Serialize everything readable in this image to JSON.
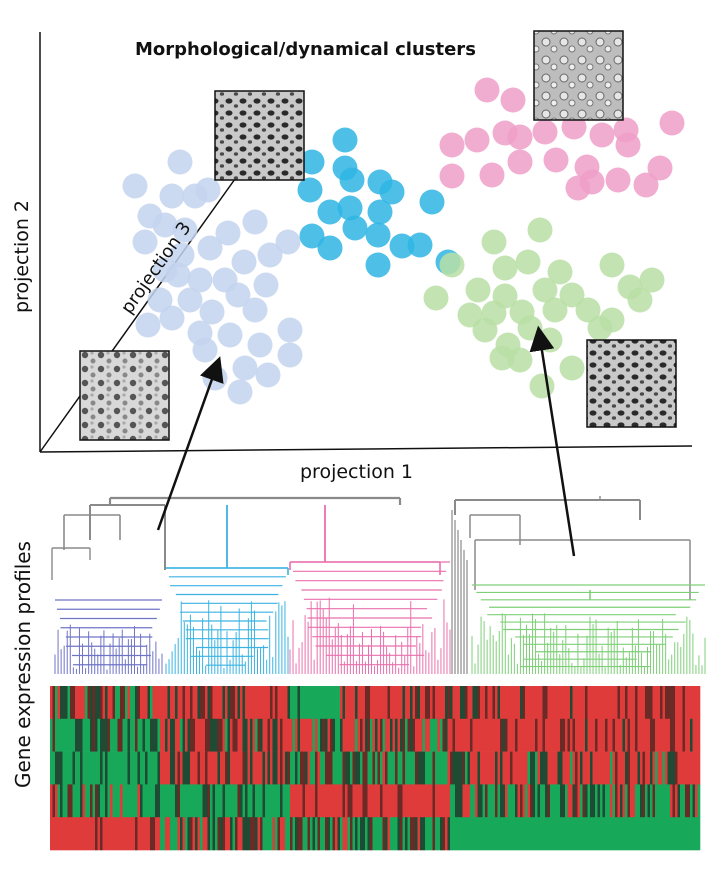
{
  "title": "Morphological/dynamical clusters",
  "axes": {
    "x_label": "projection 1",
    "y_label": "projection 2",
    "z_label": "projection 3"
  },
  "lower_label": "Gene expression profiles",
  "colors": {
    "blue_cluster": "#c3d3ef",
    "cyan_cluster": "#2fb5e4",
    "pink_cluster": "#ef9fc8",
    "green_cluster": "#b9dfa5",
    "dendro_gray": "#8a8a8a",
    "dendro_purple": "#6f74c6",
    "dendro_cyan": "#3ab3e2",
    "dendro_pink": "#e970ad",
    "dendro_green": "#7fcf78",
    "heat_red": "#e03b3b",
    "heat_green": "#18a85a",
    "heat_black": "#2b2020"
  },
  "micrographs": [
    {
      "name": "micrograph-projection-3",
      "icon": "tissue-image"
    },
    {
      "name": "micrograph-blue-cluster",
      "icon": "tissue-image"
    },
    {
      "name": "micrograph-pink-cluster",
      "icon": "tissue-image"
    },
    {
      "name": "micrograph-green-cluster",
      "icon": "tissue-image"
    }
  ]
}
